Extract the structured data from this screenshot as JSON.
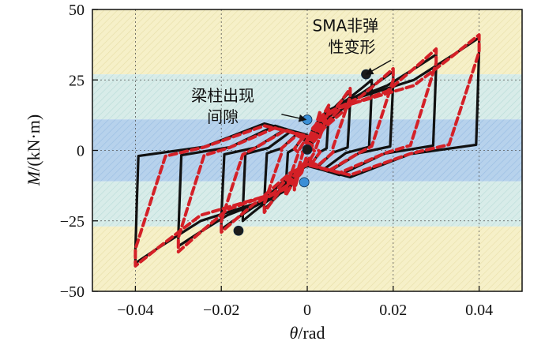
{
  "chart_data": {
    "type": "line",
    "title": "",
    "xlabel": {
      "symbol": "θ",
      "unit": "/rad"
    },
    "ylabel": {
      "symbol": "M",
      "unit": "/(kN·m)"
    },
    "xlim": [
      -0.05,
      0.05
    ],
    "ylim": [
      -50,
      50
    ],
    "xticks": [
      -0.04,
      -0.02,
      0,
      0.02,
      0.04
    ],
    "xtick_labels": [
      "−0.04",
      "−0.02",
      "0",
      "0.02",
      "0.04"
    ],
    "yticks": [
      -50,
      -25,
      0,
      25,
      50
    ],
    "ytick_labels": [
      "−50",
      "−25",
      "0",
      "25",
      "50"
    ],
    "grid": true,
    "bands": [
      {
        "from": 27,
        "to": 50,
        "color": "#f6f0c8",
        "hatch": "#e7dfa8"
      },
      {
        "from": 11,
        "to": 27,
        "color": "#d8ece9",
        "hatch": "#b9dcd8"
      },
      {
        "from": -11,
        "to": 11,
        "color": "#b7d2ec",
        "hatch": "#98bde2"
      },
      {
        "from": -27,
        "to": -11,
        "color": "#d8ece9",
        "hatch": "#b9dcd8"
      },
      {
        "from": -50,
        "to": -27,
        "color": "#f6f0c8",
        "hatch": "#e7dfa8"
      }
    ],
    "series": [
      {
        "style": "solid",
        "color": "#111111",
        "loops": [
          {
            "amp": 0.04,
            "peak": 40,
            "yield": 25,
            "drop": 0.0007,
            "flat": 4
          },
          {
            "amp": 0.03,
            "peak": 34,
            "yield": 23,
            "drop": 0.0007,
            "flat": 4
          },
          {
            "amp": 0.02,
            "peak": 28,
            "yield": 20,
            "drop": 0.0007,
            "flat": 4
          },
          {
            "amp": 0.015,
            "peak": 25,
            "yield": 18,
            "drop": 0.0006,
            "flat": 3
          },
          {
            "amp": 0.01,
            "peak": 21,
            "yield": 15,
            "drop": 0.0006,
            "flat": 3
          },
          {
            "amp": 0.005,
            "peak": 15,
            "yield": 11,
            "drop": 0.0005,
            "flat": 2
          }
        ]
      },
      {
        "style": "dashed",
        "color": "#d42027",
        "loops": [
          {
            "amp": 0.04,
            "peak": 41,
            "yield": 23,
            "drop": 0.007,
            "flat": 6
          },
          {
            "amp": 0.03,
            "peak": 36,
            "yield": 21,
            "drop": 0.006,
            "flat": 5
          },
          {
            "amp": 0.02,
            "peak": 29,
            "yield": 19,
            "drop": 0.005,
            "flat": 4
          },
          {
            "amp": 0.01,
            "peak": 22,
            "yield": 14,
            "drop": 0.004,
            "flat": 3
          },
          {
            "amp": 0.005,
            "peak": 16,
            "yield": 11,
            "drop": 0.003,
            "flat": 2
          },
          {
            "amp": 0.003,
            "peak": 14,
            "yield": 8,
            "drop": 0.002,
            "flat": 2
          }
        ]
      }
    ],
    "markers": [
      {
        "x": 0.0137,
        "y": 27,
        "color": "#1b1b1b"
      },
      {
        "x": -0.016,
        "y": -28.5,
        "color": "#1b1b1b"
      },
      {
        "x": 0.0,
        "y": 0.3,
        "color": "#1b1b1b"
      },
      {
        "x": 0.0,
        "y": 10.9,
        "color": "#3b8fd6"
      },
      {
        "x": -0.0007,
        "y": -11.3,
        "color": "#3b8fd6"
      }
    ],
    "annotations": [
      {
        "lines": [
          "SMA非弹",
          "性变形"
        ],
        "text_x": 0.0012,
        "text_y": 42.3,
        "arrow_from": [
          0.0195,
          32.0
        ],
        "arrow_to": [
          0.0137,
          27.0
        ]
      },
      {
        "lines": [
          "梁柱出现",
          "间隙"
        ],
        "text_x": -0.027,
        "text_y": 17.5,
        "arrow_from": [
          -0.006,
          12.8
        ],
        "arrow_to": [
          -0.0003,
          10.9
        ]
      }
    ]
  }
}
